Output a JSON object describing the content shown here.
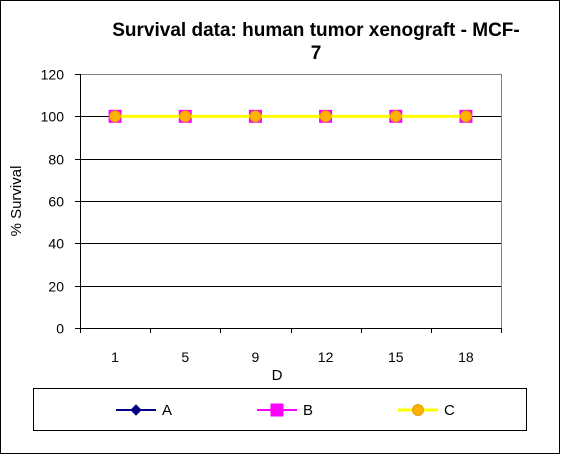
{
  "chart_data": {
    "type": "line",
    "title_lines": [
      "Survival data: human tumor xenograft - MCF-",
      "7"
    ],
    "xlabel": "D",
    "ylabel": "% Survival",
    "categories": [
      "1",
      "5",
      "9",
      "12",
      "15",
      "18"
    ],
    "ylim": [
      0,
      120
    ],
    "yticks": [
      0,
      20,
      40,
      60,
      80,
      100,
      120
    ],
    "grid": "horizontal",
    "legend_position": "bottom",
    "series": [
      {
        "name": "A",
        "values": [
          100,
          100,
          100,
          100,
          100,
          100
        ],
        "color": "#000080",
        "marker": "diamond"
      },
      {
        "name": "B",
        "values": [
          100,
          100,
          100,
          100,
          100,
          100
        ],
        "color": "#ff00ff",
        "marker": "square"
      },
      {
        "name": "C",
        "values": [
          100,
          100,
          100,
          100,
          100,
          100
        ],
        "color": "#ffff00",
        "marker": "circle",
        "marker_fill": "#ffb000"
      }
    ]
  }
}
